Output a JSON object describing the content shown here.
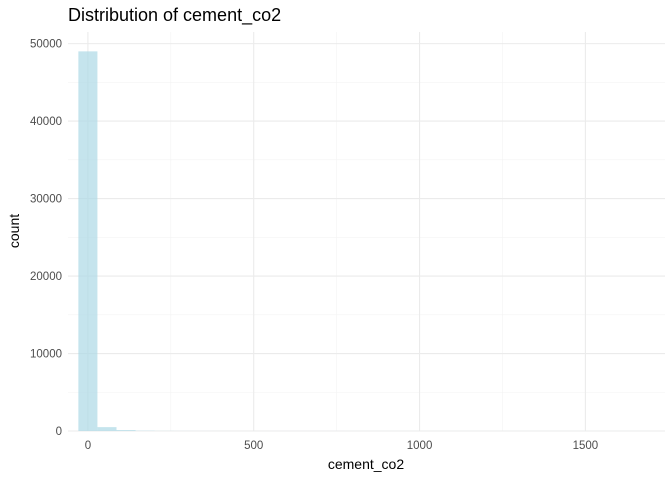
{
  "chart_data": {
    "type": "bar",
    "title": "Distribution of cement_co2",
    "xlabel": "cement_co2",
    "ylabel": "count",
    "xlim": [
      -60,
      1740
    ],
    "ylim": [
      0,
      51500
    ],
    "x_ticks": [
      0,
      500,
      1000,
      1500
    ],
    "x_tick_labels": [
      "0",
      "500",
      "1000",
      "1500"
    ],
    "y_ticks": [
      0,
      10000,
      20000,
      30000,
      40000,
      50000
    ],
    "y_tick_labels": [
      "0",
      "10000",
      "20000",
      "30000",
      "40000",
      "50000"
    ],
    "bin_width": 57.5,
    "bins": [
      {
        "x0": -28.75,
        "x1": 28.75,
        "count": 49000
      },
      {
        "x0": 28.75,
        "x1": 86.25,
        "count": 500
      },
      {
        "x0": 86.25,
        "x1": 143.75,
        "count": 120
      },
      {
        "x0": 143.75,
        "x1": 201.25,
        "count": 40
      },
      {
        "x0": 201.25,
        "x1": 258.75,
        "count": 15
      },
      {
        "x0": 258.75,
        "x1": 316.25,
        "count": 10
      },
      {
        "x0": 316.25,
        "x1": 373.75,
        "count": 6
      },
      {
        "x0": 373.75,
        "x1": 431.25,
        "count": 4
      },
      {
        "x0": 431.25,
        "x1": 488.75,
        "count": 3
      },
      {
        "x0": 488.75,
        "x1": 546.25,
        "count": 3
      },
      {
        "x0": 546.25,
        "x1": 603.75,
        "count": 2
      },
      {
        "x0": 603.75,
        "x1": 661.25,
        "count": 2
      },
      {
        "x0": 661.25,
        "x1": 718.75,
        "count": 2
      },
      {
        "x0": 718.75,
        "x1": 776.25,
        "count": 2
      },
      {
        "x0": 776.25,
        "x1": 833.75,
        "count": 1
      },
      {
        "x0": 833.75,
        "x1": 891.25,
        "count": 1
      },
      {
        "x0": 891.25,
        "x1": 948.75,
        "count": 1
      },
      {
        "x0": 948.75,
        "x1": 1006.25,
        "count": 1
      },
      {
        "x0": 1006.25,
        "x1": 1063.75,
        "count": 1
      },
      {
        "x0": 1063.75,
        "x1": 1121.25,
        "count": 1
      },
      {
        "x0": 1121.25,
        "x1": 1178.75,
        "count": 1
      },
      {
        "x0": 1178.75,
        "x1": 1236.25,
        "count": 1
      },
      {
        "x0": 1236.25,
        "x1": 1293.75,
        "count": 1
      },
      {
        "x0": 1293.75,
        "x1": 1351.25,
        "count": 1
      },
      {
        "x0": 1351.25,
        "x1": 1408.75,
        "count": 1
      },
      {
        "x0": 1408.75,
        "x1": 1466.25,
        "count": 1
      },
      {
        "x0": 1466.25,
        "x1": 1523.75,
        "count": 1
      },
      {
        "x0": 1523.75,
        "x1": 1581.25,
        "count": 1
      },
      {
        "x0": 1581.25,
        "x1": 1638.75,
        "count": 1
      },
      {
        "x0": 1638.75,
        "x1": 1696.25,
        "count": 1
      }
    ],
    "grid": true,
    "legend": "none",
    "colors": {
      "bar_fill": "#add8e6",
      "bar_opacity": 0.7,
      "grid_major": "#ebebeb",
      "grid_minor": "#f3f3f3",
      "text": "#000000",
      "tick_text": "#4d4d4d"
    }
  }
}
